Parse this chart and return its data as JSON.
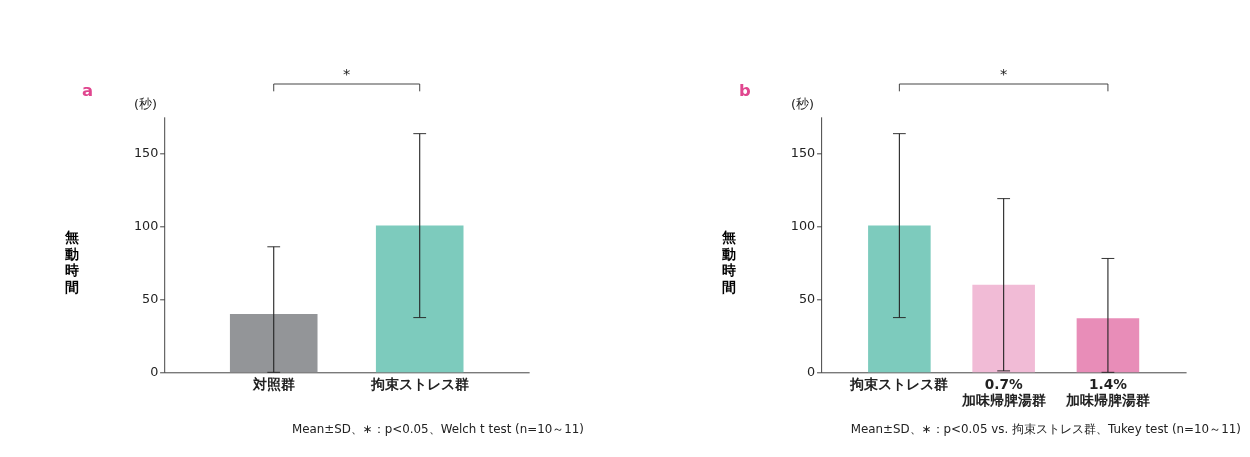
{
  "chart_data": [
    {
      "type": "bar",
      "categories": [
        "対照群",
        "拘束ストレス群"
      ],
      "values": [
        40,
        100.5
      ],
      "colors": [
        "#939598",
        "#7dcbbd"
      ],
      "errors": [
        [
          0,
          86
        ],
        63
      ],
      "ylabel": "無動時間",
      "ylim": [
        0,
        175
      ],
      "yticks": [
        0,
        50,
        100,
        150
      ],
      "grid": false,
      "annotations": [
        "a",
        "(秒)",
        "*",
        "Mean±SD、∗：p<0.05、Welch t test (n=10～11)"
      ]
    },
    {
      "type": "bar",
      "categories": [
        "拘束ストレス群",
        "0.7%\n加味帰脾湯群",
        "1.4%\n加味帰脾湯群"
      ],
      "values": [
        100.5,
        60,
        37
      ],
      "colors": [
        "#7dcbbd",
        "#f1bbd6",
        "#e88db8"
      ],
      "errors": [
        63,
        59,
        [
          0,
          78
        ]
      ],
      "ylabel": "無動時間",
      "ylim": [
        0,
        175
      ],
      "yticks": [
        0,
        50,
        100,
        150
      ],
      "grid": false,
      "annotations": [
        "b",
        "(秒)",
        "*",
        "Mean±SD、∗：p<0.05 vs. 拘束ストレス群、Tukey test (n=10～11)"
      ]
    }
  ]
}
